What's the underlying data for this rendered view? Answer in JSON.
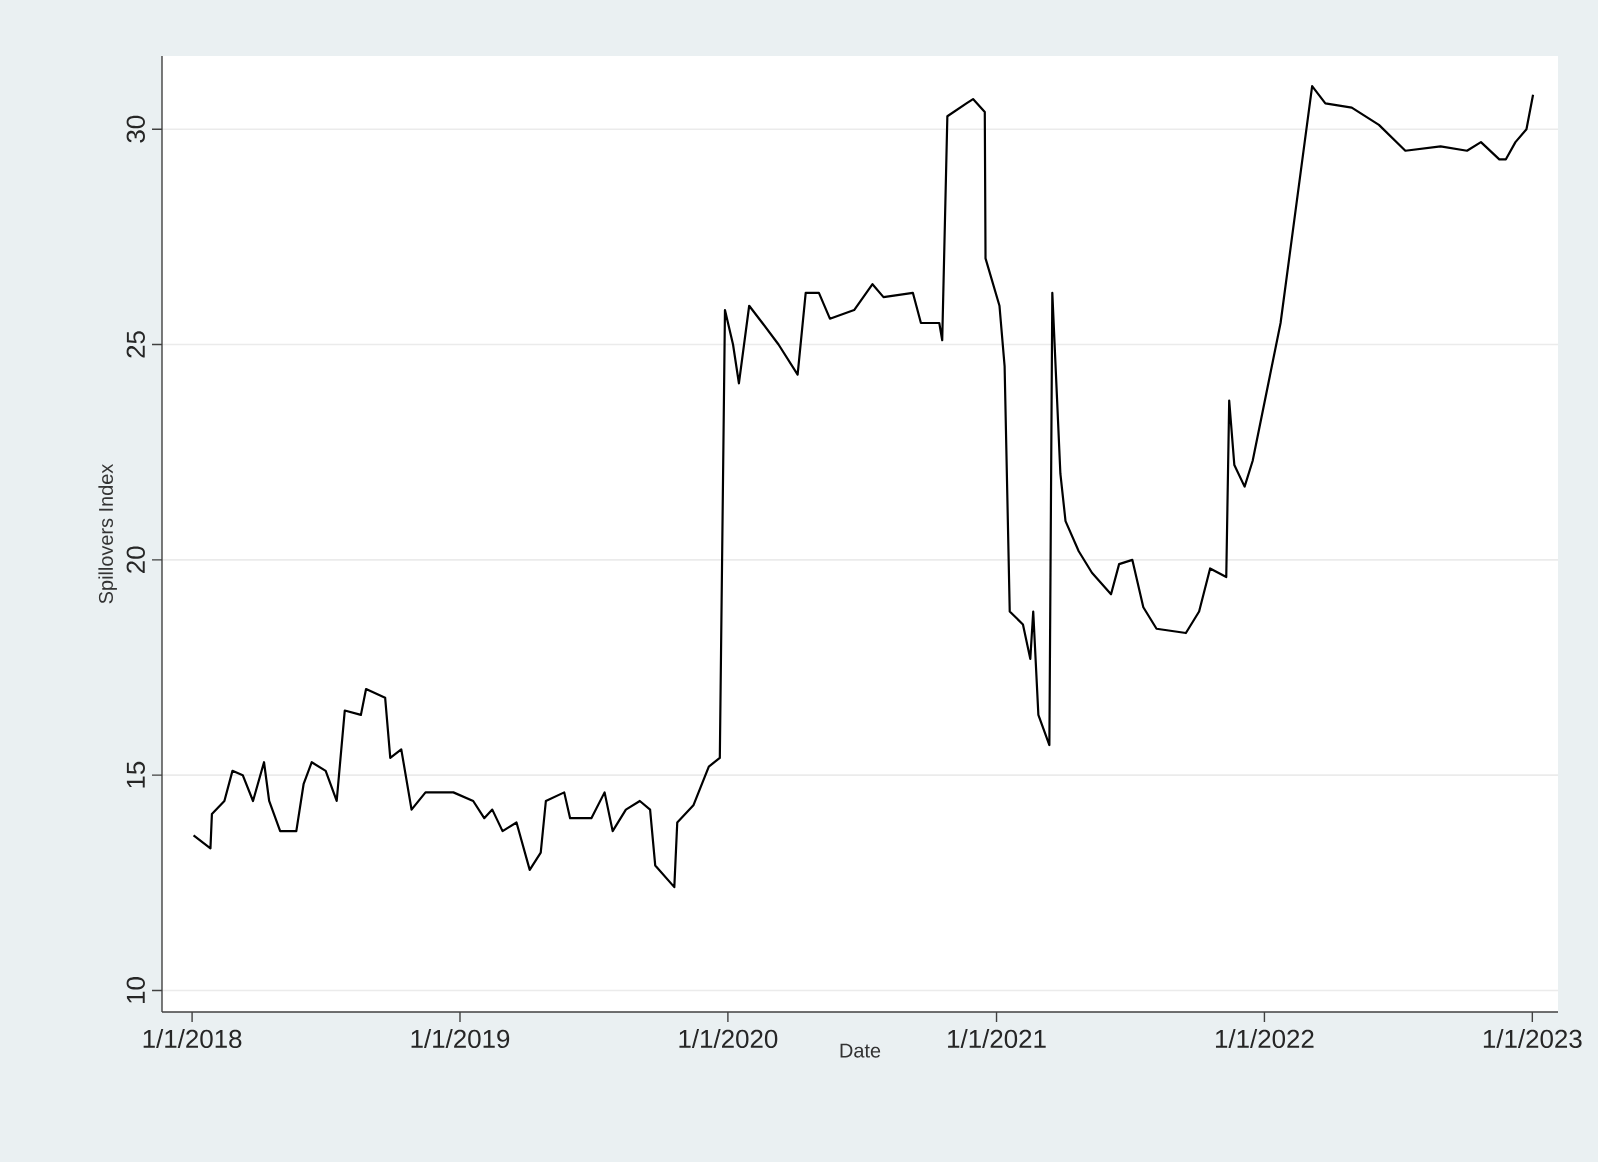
{
  "chart_data": {
    "type": "line",
    "xlabel": "Date",
    "ylabel": "Spillovers Index",
    "xlim": [
      "2017-11-21",
      "2023-02-05"
    ],
    "ylim": [
      9.5,
      31.7
    ],
    "xticks": [
      {
        "value": "2018-01-01",
        "label": "1/1/2018"
      },
      {
        "value": "2019-01-01",
        "label": "1/1/2019"
      },
      {
        "value": "2020-01-01",
        "label": "1/1/2020"
      },
      {
        "value": "2021-01-01",
        "label": "1/1/2021"
      },
      {
        "value": "2022-01-01",
        "label": "1/1/2022"
      },
      {
        "value": "2023-01-01",
        "label": "1/1/2023"
      }
    ],
    "yticks": [
      10,
      15,
      20,
      25,
      30
    ],
    "grid": "y",
    "marker": "none",
    "line_style": "solid",
    "series": [
      {
        "color": "#000000",
        "x": [
          "2018-01-03",
          "2018-01-26",
          "2018-01-28",
          "2018-02-14",
          "2018-02-25",
          "2018-03-11",
          "2018-03-25",
          "2018-04-09",
          "2018-04-16",
          "2018-05-01",
          "2018-05-23",
          "2018-06-02",
          "2018-06-13",
          "2018-07-02",
          "2018-07-17",
          "2018-07-28",
          "2018-08-19",
          "2018-08-26",
          "2018-09-21",
          "2018-09-28",
          "2018-10-13",
          "2018-10-27",
          "2018-11-15",
          "2018-12-23",
          "2019-01-19",
          "2019-02-03",
          "2019-02-14",
          "2019-02-28",
          "2019-03-19",
          "2019-04-06",
          "2019-04-21",
          "2019-04-28",
          "2019-05-23",
          "2019-05-31",
          "2019-06-29",
          "2019-07-17",
          "2019-07-28",
          "2019-08-15",
          "2019-09-03",
          "2019-09-17",
          "2019-09-24",
          "2019-10-20",
          "2019-10-24",
          "2019-11-15",
          "2019-12-06",
          "2019-12-21",
          "2019-12-28",
          "2020-01-08",
          "2020-01-16",
          "2020-01-30",
          "2020-02-17",
          "2020-03-10",
          "2020-04-05",
          "2020-04-16",
          "2020-05-04",
          "2020-05-19",
          "2020-06-21",
          "2020-07-16",
          "2020-07-31",
          "2020-09-09",
          "2020-09-20",
          "2020-10-15",
          "2020-10-19",
          "2020-10-26",
          "2020-11-21",
          "2020-11-30",
          "2020-12-16",
          "2020-12-17",
          "2021-01-05",
          "2021-01-12",
          "2021-01-19",
          "2021-02-06",
          "2021-02-16",
          "2021-02-20",
          "2021-02-27",
          "2021-03-14",
          "2021-03-18",
          "2021-03-29",
          "2021-04-05",
          "2021-04-23",
          "2021-05-11",
          "2021-06-06",
          "2021-06-17",
          "2021-07-05",
          "2021-07-20",
          "2021-08-07",
          "2021-09-16",
          "2021-10-04",
          "2021-10-19",
          "2021-11-10",
          "2021-11-14",
          "2021-11-21",
          "2021-12-05",
          "2021-12-16",
          "2022-01-23",
          "2022-03-07",
          "2022-03-25",
          "2022-04-30",
          "2022-06-06",
          "2022-07-12",
          "2022-08-29",
          "2022-10-04",
          "2022-10-23",
          "2022-11-17",
          "2022-11-26",
          "2022-12-09",
          "2022-12-24",
          "2023-01-02"
        ],
        "values": [
          13.6,
          13.3,
          14.1,
          14.4,
          15.1,
          15.0,
          14.4,
          15.3,
          14.4,
          13.7,
          13.7,
          14.8,
          15.3,
          15.1,
          14.4,
          16.5,
          16.4,
          17.0,
          16.8,
          15.4,
          15.6,
          14.2,
          14.6,
          14.6,
          14.4,
          14.0,
          14.2,
          13.7,
          13.9,
          12.8,
          13.2,
          14.4,
          14.6,
          14.0,
          14.0,
          14.6,
          13.7,
          14.2,
          14.4,
          14.2,
          12.9,
          12.4,
          13.9,
          14.3,
          15.2,
          15.4,
          25.8,
          25.0,
          24.1,
          25.9,
          25.5,
          25.0,
          24.3,
          26.2,
          26.2,
          25.6,
          25.8,
          26.4,
          26.1,
          26.2,
          25.5,
          25.5,
          25.1,
          30.3,
          30.6,
          30.7,
          30.4,
          27.0,
          25.9,
          24.5,
          18.8,
          18.5,
          17.7,
          18.8,
          16.4,
          15.7,
          26.2,
          22.0,
          20.9,
          20.2,
          19.7,
          19.2,
          19.9,
          20.0,
          18.9,
          18.4,
          18.3,
          18.8,
          19.8,
          19.6,
          23.7,
          22.2,
          21.7,
          22.3,
          25.5,
          31.0,
          30.6,
          30.5,
          30.1,
          29.5,
          29.6,
          29.5,
          29.7,
          29.3,
          29.3,
          29.7,
          30.0,
          30.8
        ]
      }
    ]
  }
}
